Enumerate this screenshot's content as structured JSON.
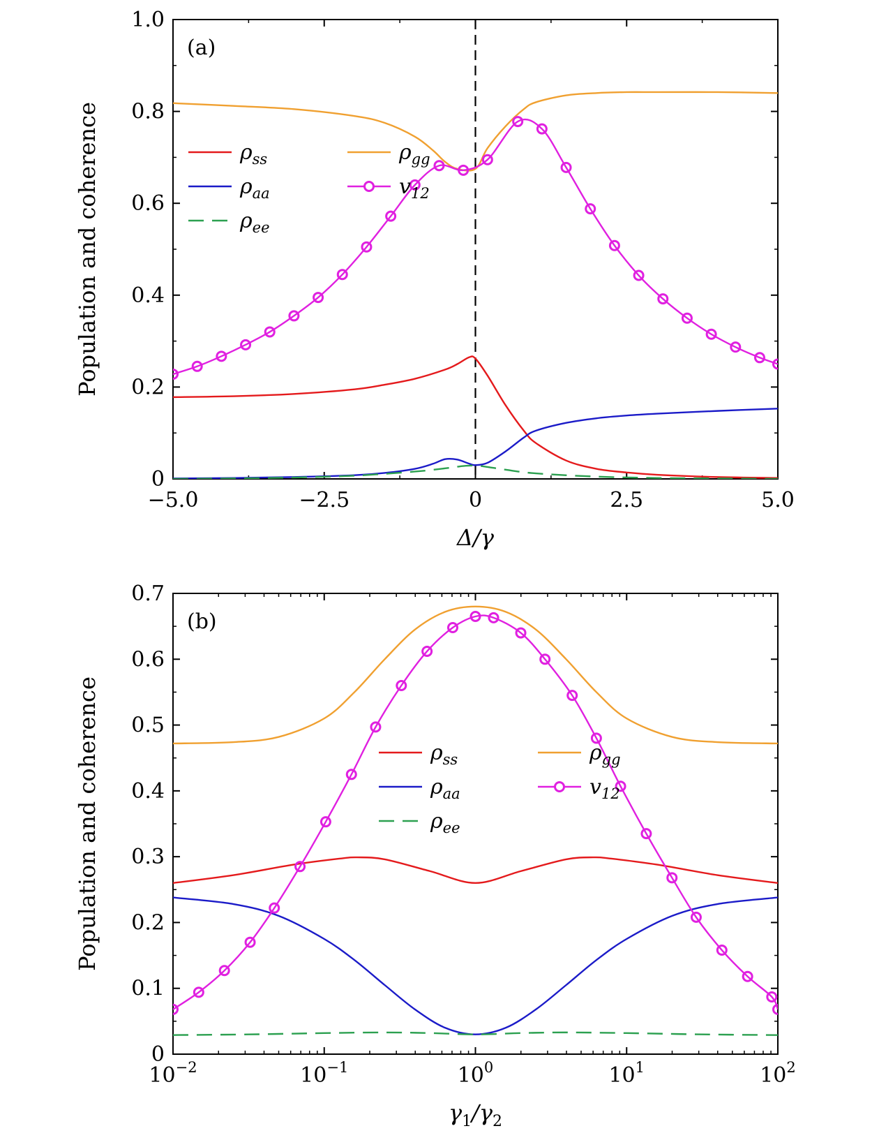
{
  "chart_data": [
    {
      "type": "line",
      "panel_label": "(a)",
      "xlabel": "Δ/γ",
      "ylabel": "Population and coherence",
      "xscale": "linear",
      "xlim": [
        -5,
        5
      ],
      "ylim": [
        0,
        1
      ],
      "xticks": [
        -5,
        -2.5,
        0,
        2.5,
        5
      ],
      "xtick_labels": [
        "−5.0",
        "−2.5",
        "0",
        "2.5",
        "5.0"
      ],
      "yticks": [
        0,
        0.2,
        0.4,
        0.6,
        0.8,
        1.0
      ],
      "ytick_labels": [
        "0",
        "0.2",
        "0.4",
        "0.6",
        "0.8",
        "1.0"
      ],
      "vertical_line_x": 0,
      "legend_position": "upper-left",
      "series": [
        {
          "name": "ρ_ss",
          "label_base": "ρ",
          "label_sub": "ss",
          "color": "#e41a1c",
          "style": "solid",
          "marker": "none",
          "x": [
            -5,
            -4,
            -3,
            -2,
            -1.5,
            -1,
            -0.5,
            -0.3,
            -0.1,
            0,
            0.2,
            0.5,
            0.8,
            1,
            1.5,
            2,
            2.5,
            3,
            4,
            5
          ],
          "y": [
            0.178,
            0.18,
            0.185,
            0.195,
            0.205,
            0.218,
            0.238,
            0.25,
            0.265,
            0.262,
            0.225,
            0.16,
            0.105,
            0.078,
            0.04,
            0.022,
            0.014,
            0.009,
            0.004,
            0.002
          ]
        },
        {
          "name": "ρ_gg",
          "label_base": "ρ",
          "label_sub": "gg",
          "color": "#f0a030",
          "style": "solid",
          "marker": "none",
          "x": [
            -5,
            -4,
            -3,
            -2,
            -1.5,
            -1,
            -0.7,
            -0.5,
            -0.3,
            0,
            0.2,
            0.5,
            0.8,
            1,
            1.5,
            2,
            2.5,
            3,
            4,
            5
          ],
          "y": [
            0.818,
            0.812,
            0.805,
            0.79,
            0.775,
            0.745,
            0.715,
            0.69,
            0.675,
            0.675,
            0.72,
            0.768,
            0.805,
            0.82,
            0.835,
            0.84,
            0.842,
            0.842,
            0.842,
            0.84
          ]
        },
        {
          "name": "ρ_aa",
          "label_base": "ρ",
          "label_sub": "aa",
          "color": "#1b1bc8",
          "style": "solid",
          "marker": "none",
          "x": [
            -5,
            -4,
            -3,
            -2,
            -1.5,
            -1,
            -0.7,
            -0.5,
            -0.3,
            -0.1,
            0,
            0.2,
            0.5,
            0.8,
            1,
            1.5,
            2,
            2.5,
            3,
            4,
            5
          ],
          "y": [
            0.001,
            0.002,
            0.004,
            0.008,
            0.013,
            0.022,
            0.033,
            0.043,
            0.042,
            0.033,
            0.03,
            0.035,
            0.06,
            0.09,
            0.105,
            0.122,
            0.132,
            0.138,
            0.142,
            0.148,
            0.153
          ]
        },
        {
          "name": "ρ_ee",
          "label_base": "ρ",
          "label_sub": "ee",
          "color": "#2ca050",
          "style": "dashed",
          "marker": "none",
          "x": [
            -5,
            -4,
            -3,
            -2,
            -1,
            -0.5,
            -0.2,
            0,
            0.2,
            0.5,
            1,
            2,
            3,
            4,
            5
          ],
          "y": [
            0.0,
            0.001,
            0.003,
            0.007,
            0.016,
            0.023,
            0.028,
            0.029,
            0.026,
            0.02,
            0.012,
            0.005,
            0.002,
            0.001,
            0.0
          ]
        },
        {
          "name": "v_12",
          "label_base": "v",
          "label_sub": "12",
          "color": "#e020e0",
          "style": "solid",
          "marker": "circle",
          "x": [
            -5,
            -4.6,
            -4.2,
            -3.8,
            -3.4,
            -3.0,
            -2.6,
            -2.2,
            -1.8,
            -1.4,
            -1.0,
            -0.6,
            -0.2,
            0.2,
            0.7,
            1.1,
            1.5,
            1.9,
            2.3,
            2.7,
            3.1,
            3.5,
            3.9,
            4.3,
            4.7,
            5.0
          ],
          "y": [
            0.228,
            0.245,
            0.267,
            0.292,
            0.32,
            0.355,
            0.395,
            0.445,
            0.505,
            0.572,
            0.64,
            0.682,
            0.672,
            0.695,
            0.778,
            0.762,
            0.678,
            0.588,
            0.508,
            0.443,
            0.392,
            0.35,
            0.315,
            0.287,
            0.264,
            0.25
          ]
        }
      ]
    },
    {
      "type": "line",
      "panel_label": "(b)",
      "xlabel": "γ1/γ2",
      "ylabel": "Population and coherence",
      "xscale": "log",
      "xlim": [
        0.01,
        100
      ],
      "ylim": [
        0,
        0.7
      ],
      "xticks": [
        0.01,
        0.1,
        1,
        10,
        100
      ],
      "xtick_labels_base": "10",
      "xtick_labels_exp": [
        "−2",
        "−1",
        "0",
        "1",
        "2"
      ],
      "yticks": [
        0,
        0.1,
        0.2,
        0.3,
        0.4,
        0.5,
        0.6,
        0.7
      ],
      "ytick_labels": [
        "0",
        "0.1",
        "0.2",
        "0.3",
        "0.4",
        "0.5",
        "0.6",
        "0.7"
      ],
      "legend_position": "center",
      "series": [
        {
          "name": "ρ_ss",
          "label_base": "ρ",
          "label_sub": "ss",
          "color": "#e41a1c",
          "style": "solid",
          "marker": "none",
          "logx": [
            -2,
            -1.6,
            -1.2,
            -0.9,
            -0.78,
            -0.6,
            -0.3,
            0,
            0.3,
            0.6,
            0.78,
            0.9,
            1.2,
            1.6,
            2
          ],
          "y": [
            0.26,
            0.272,
            0.288,
            0.297,
            0.299,
            0.296,
            0.278,
            0.26,
            0.278,
            0.296,
            0.299,
            0.297,
            0.288,
            0.272,
            0.26
          ]
        },
        {
          "name": "ρ_gg",
          "label_base": "ρ",
          "label_sub": "gg",
          "color": "#f0a030",
          "style": "solid",
          "marker": "none",
          "logx": [
            -2,
            -1.6,
            -1.3,
            -1.0,
            -0.8,
            -0.6,
            -0.4,
            -0.2,
            0,
            0.2,
            0.4,
            0.6,
            0.8,
            1.0,
            1.3,
            1.6,
            2
          ],
          "y": [
            0.472,
            0.474,
            0.482,
            0.51,
            0.55,
            0.6,
            0.645,
            0.672,
            0.68,
            0.672,
            0.645,
            0.6,
            0.55,
            0.51,
            0.482,
            0.474,
            0.472
          ]
        },
        {
          "name": "ρ_aa",
          "label_base": "ρ",
          "label_sub": "aa",
          "color": "#1b1bc8",
          "style": "solid",
          "marker": "none",
          "logx": [
            -2,
            -1.6,
            -1.3,
            -1.0,
            -0.8,
            -0.6,
            -0.4,
            -0.2,
            0,
            0.2,
            0.4,
            0.6,
            0.8,
            1.0,
            1.3,
            1.6,
            2
          ],
          "y": [
            0.238,
            0.228,
            0.21,
            0.175,
            0.143,
            0.105,
            0.068,
            0.04,
            0.03,
            0.04,
            0.068,
            0.105,
            0.143,
            0.175,
            0.21,
            0.228,
            0.238
          ]
        },
        {
          "name": "ρ_ee",
          "label_base": "ρ",
          "label_sub": "ee",
          "color": "#2ca050",
          "style": "dashed",
          "marker": "none",
          "logx": [
            -2,
            -1.5,
            -1,
            -0.6,
            -0.3,
            0,
            0.3,
            0.6,
            1,
            1.5,
            2
          ],
          "y": [
            0.029,
            0.03,
            0.032,
            0.033,
            0.032,
            0.03,
            0.032,
            0.033,
            0.032,
            0.03,
            0.029
          ]
        },
        {
          "name": "v_12",
          "label_base": "v",
          "label_sub": "12",
          "color": "#e020e0",
          "style": "solid",
          "marker": "circle",
          "logx": [
            -2,
            -1.83,
            -1.66,
            -1.49,
            -1.33,
            -1.16,
            -0.99,
            -0.82,
            -0.66,
            -0.49,
            -0.32,
            -0.15,
            0,
            0.12,
            0.3,
            0.46,
            0.64,
            0.8,
            0.96,
            1.13,
            1.3,
            1.46,
            1.63,
            1.8,
            1.96,
            2
          ],
          "y": [
            0.068,
            0.094,
            0.127,
            0.17,
            0.222,
            0.285,
            0.353,
            0.425,
            0.497,
            0.56,
            0.612,
            0.648,
            0.665,
            0.663,
            0.64,
            0.6,
            0.545,
            0.48,
            0.407,
            0.335,
            0.268,
            0.208,
            0.158,
            0.118,
            0.087,
            0.068
          ]
        }
      ]
    }
  ]
}
